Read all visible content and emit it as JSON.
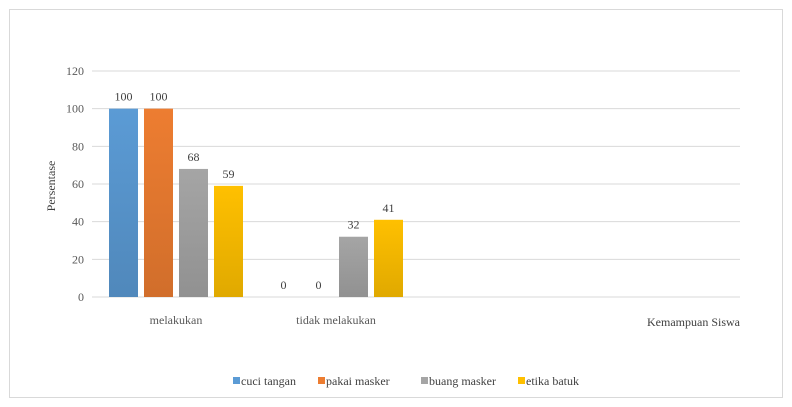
{
  "chart_data": {
    "type": "bar",
    "title": "",
    "xlabel": "Kemampuan Siswa",
    "ylabel": "Persentase",
    "ylim": [
      0,
      120
    ],
    "yticks": [
      0,
      20,
      40,
      60,
      80,
      100,
      120
    ],
    "grid": true,
    "legend_position": "bottom",
    "categories": [
      "melakukan",
      "tidak melakukan"
    ],
    "series": [
      {
        "name": "cuci tangan",
        "color": "#5b9bd5",
        "values": [
          100,
          0
        ]
      },
      {
        "name": "pakai masker",
        "color": "#ed7d31",
        "values": [
          100,
          0
        ]
      },
      {
        "name": "buang masker",
        "color": "#a5a5a5",
        "values": [
          68,
          32
        ]
      },
      {
        "name": "etika batuk",
        "color": "#ffc000",
        "values": [
          59,
          41
        ]
      }
    ]
  }
}
